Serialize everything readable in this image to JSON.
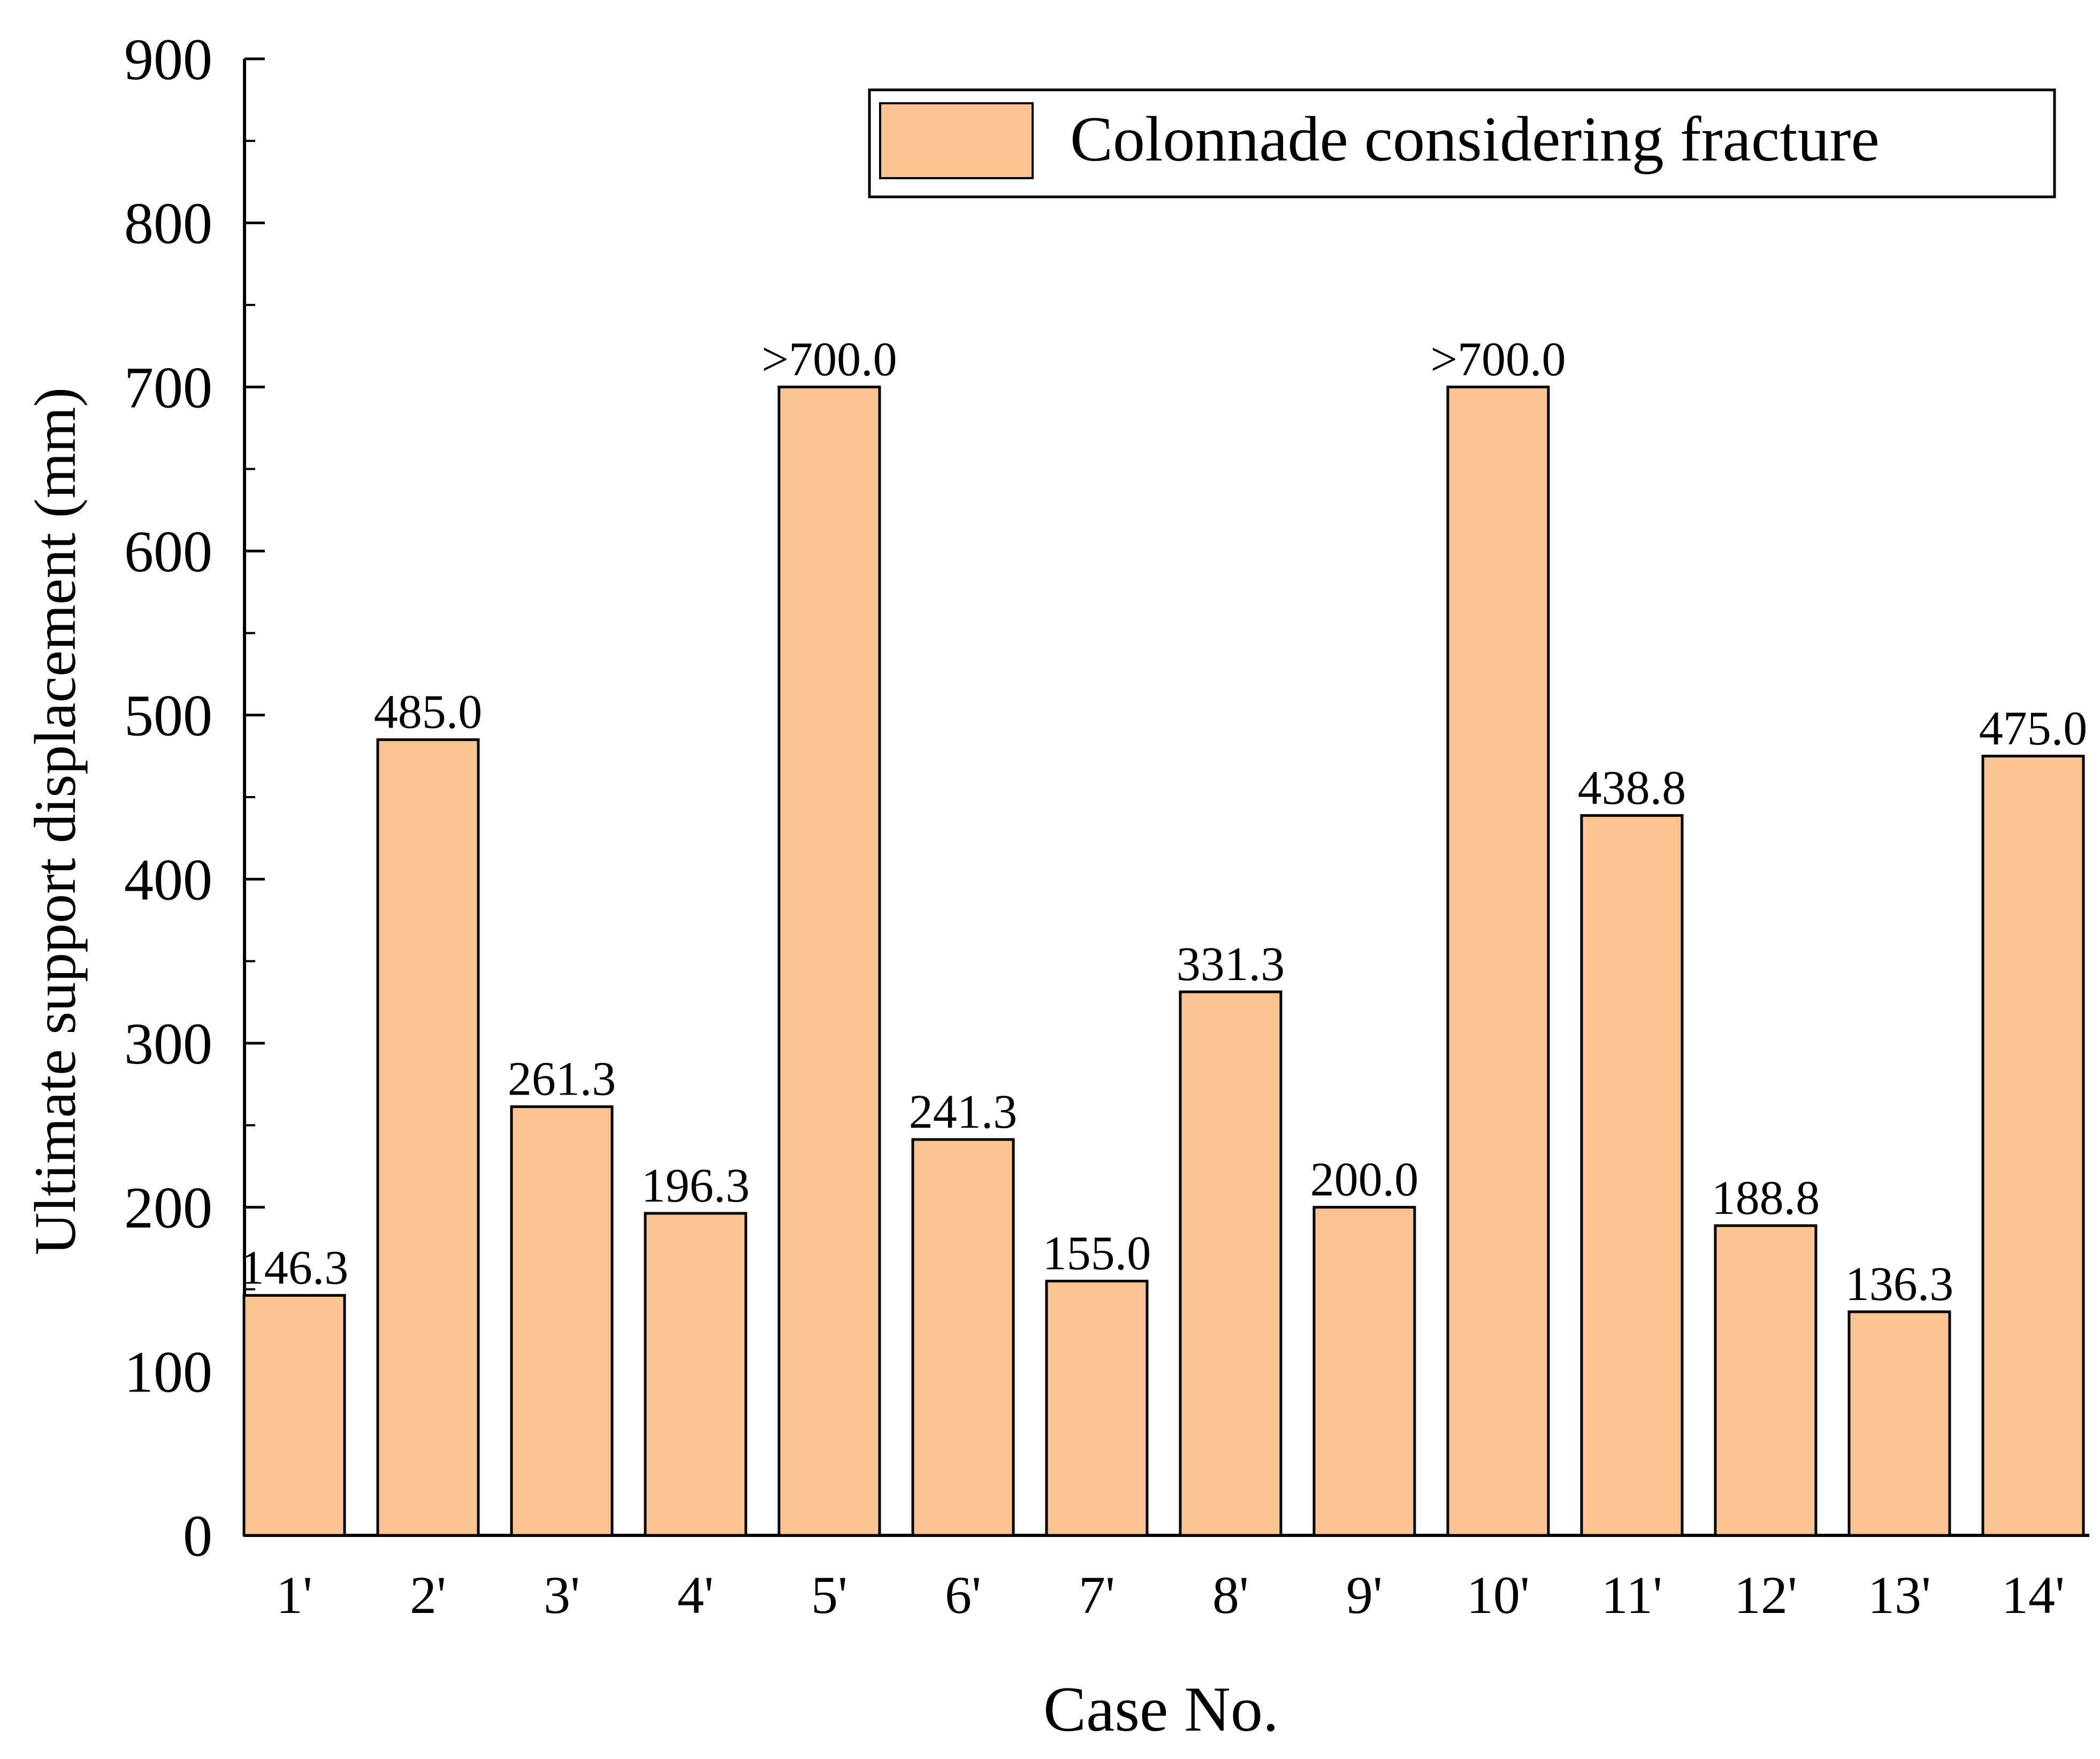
{
  "chart_data": {
    "type": "bar",
    "title": "",
    "xlabel": "Case No.",
    "ylabel": "Ultimate support displacement (mm)",
    "ylim": [
      0,
      900
    ],
    "yticks": [
      0,
      100,
      200,
      300,
      400,
      500,
      600,
      700,
      800,
      900
    ],
    "grid": false,
    "legend_position": "top-right",
    "categories": [
      "1'",
      "2'",
      "3'",
      "4'",
      "5'",
      "6'",
      "7'",
      "8'",
      "9'",
      "10'",
      "11'",
      "12'",
      "13'",
      "14'"
    ],
    "series": [
      {
        "name": "Colonnade considering fracture",
        "color": "#FCC392",
        "values": [
          146.3,
          485.0,
          261.3,
          196.3,
          700.0,
          241.3,
          155.0,
          331.3,
          200.0,
          700.0,
          438.8,
          188.8,
          136.3,
          475.0
        ],
        "data_labels": [
          "146.3",
          "485.0",
          "261.3",
          "196.3",
          ">700.0",
          "241.3",
          "155.0",
          "331.3",
          "200.0",
          ">700.0",
          "438.8",
          "188.8",
          "136.3",
          "475.0"
        ]
      }
    ]
  }
}
